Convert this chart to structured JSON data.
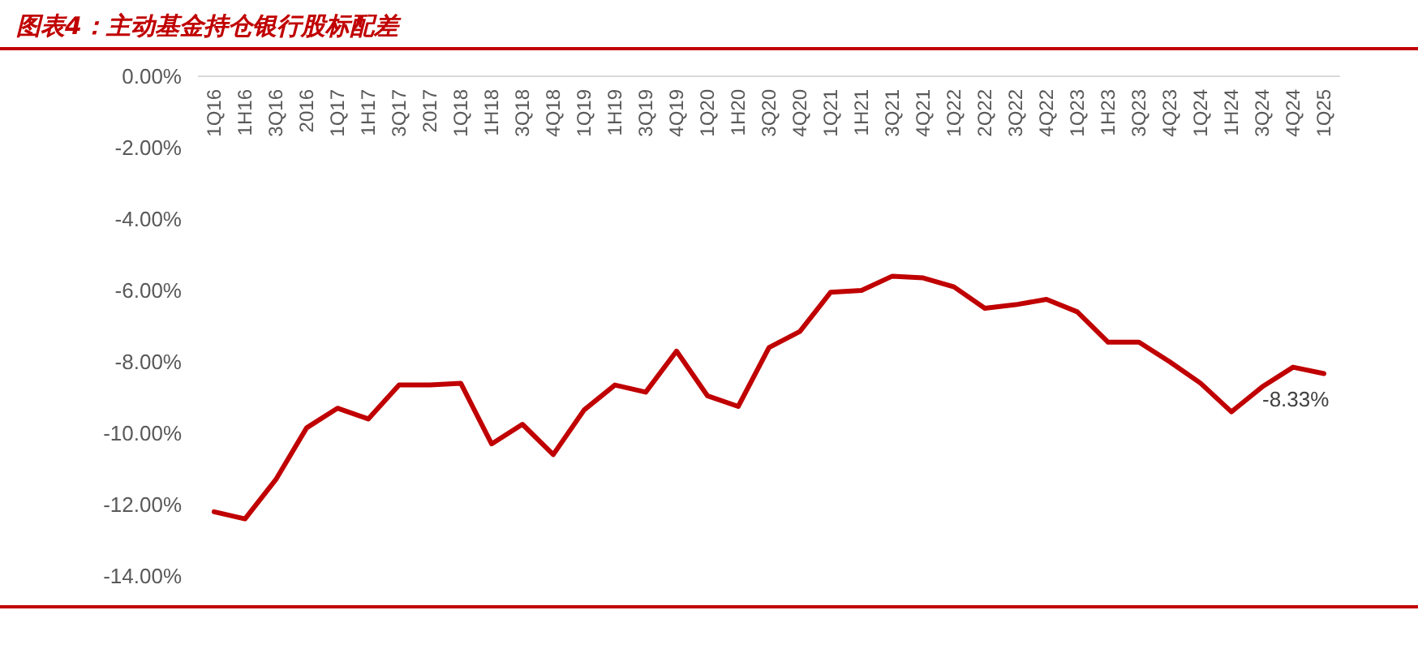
{
  "chart_data": {
    "type": "line",
    "title": "图表4：主动基金持仓银行股标配差",
    "categories": [
      "1Q16",
      "1H16",
      "3Q16",
      "2016",
      "1Q17",
      "1H17",
      "3Q17",
      "2017",
      "1Q18",
      "1H18",
      "3Q18",
      "4Q18",
      "1Q19",
      "1H19",
      "3Q19",
      "4Q19",
      "1Q20",
      "1H20",
      "3Q20",
      "4Q20",
      "1Q21",
      "1H21",
      "3Q21",
      "4Q21",
      "1Q22",
      "2Q22",
      "3Q22",
      "4Q22",
      "1Q23",
      "1H23",
      "3Q23",
      "4Q23",
      "1Q24",
      "1H24",
      "3Q24",
      "4Q24",
      "1Q25"
    ],
    "series": [
      {
        "color": "#c00000",
        "values": [
          -12.2,
          -12.4,
          -11.3,
          -9.85,
          -9.3,
          -9.6,
          -8.65,
          -8.65,
          -8.6,
          -10.3,
          -9.75,
          -10.6,
          -9.35,
          -8.65,
          -8.85,
          -7.7,
          -8.95,
          -9.25,
          -7.6,
          -7.15,
          -6.05,
          -6.0,
          -5.6,
          -5.65,
          -5.9,
          -6.5,
          -6.4,
          -6.25,
          -6.6,
          -7.45,
          -7.45,
          -8.0,
          -8.6,
          -9.4,
          -8.7,
          -8.15,
          -8.33
        ],
        "value_labels": [
          null,
          null,
          null,
          null,
          null,
          null,
          null,
          null,
          null,
          null,
          null,
          null,
          null,
          null,
          null,
          null,
          null,
          null,
          null,
          null,
          null,
          null,
          null,
          null,
          null,
          null,
          null,
          null,
          null,
          null,
          null,
          null,
          null,
          null,
          null,
          null,
          "-8.33%"
        ]
      }
    ],
    "ylim": [
      -14,
      0
    ],
    "yticks": [
      {
        "value": 0,
        "label": "0.00%"
      },
      {
        "value": -2,
        "label": "-2.00%"
      },
      {
        "value": -4,
        "label": "-4.00%"
      },
      {
        "value": -6,
        "label": "-6.00%"
      },
      {
        "value": -8,
        "label": "-8.00%"
      },
      {
        "value": -10,
        "label": "-10.00%"
      },
      {
        "value": -12,
        "label": "-12.00%"
      },
      {
        "value": -14,
        "label": "-14.00%"
      }
    ],
    "grid": false,
    "marker": "none",
    "line_style": "solid"
  }
}
